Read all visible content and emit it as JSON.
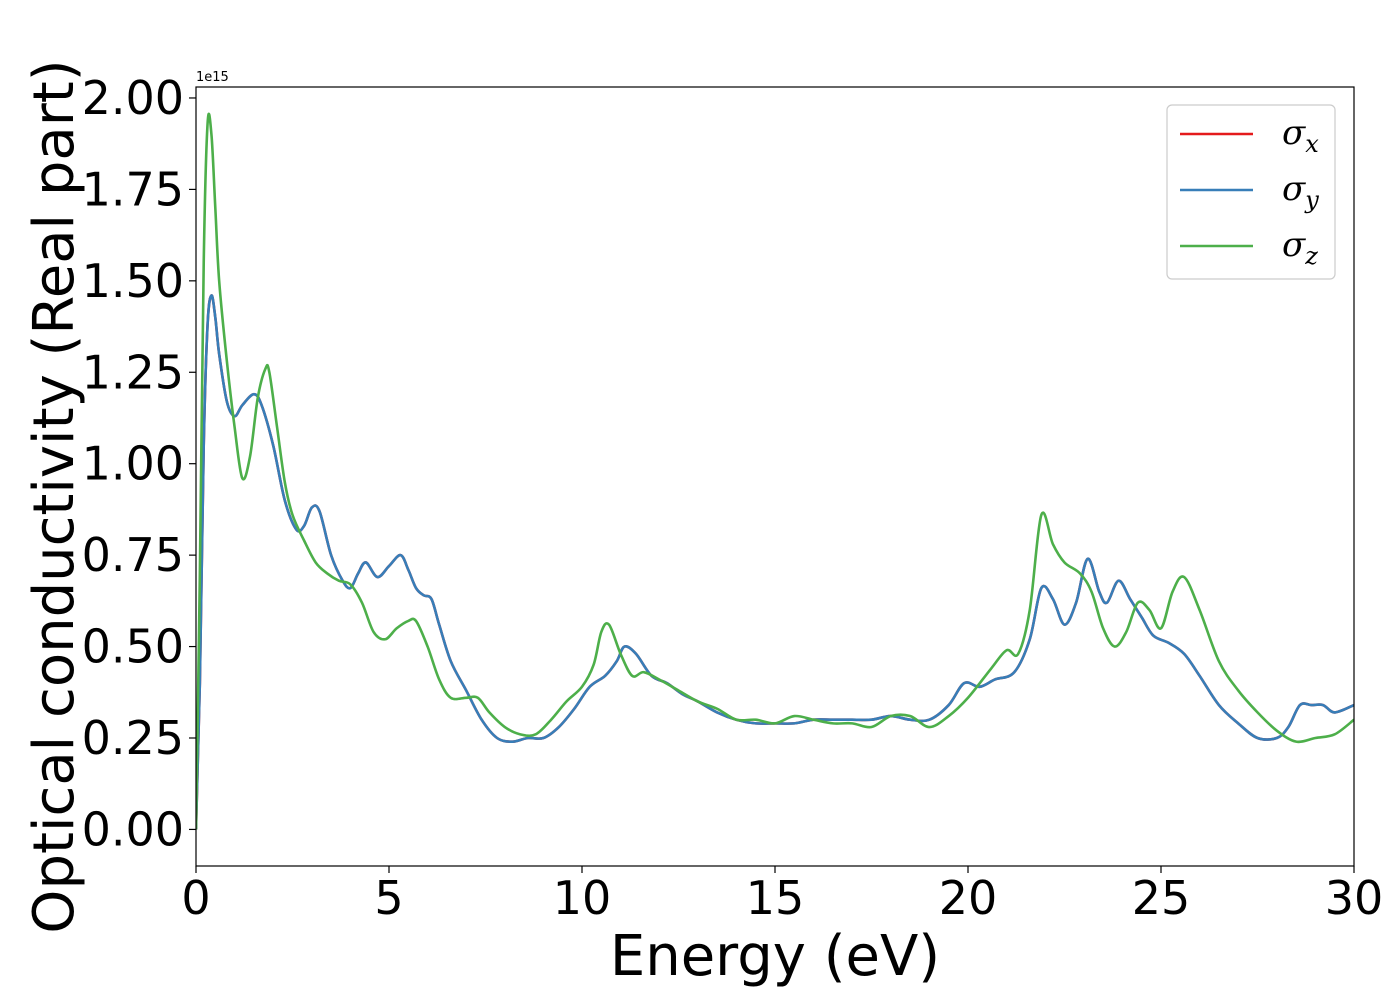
{
  "chart_data": {
    "type": "line",
    "xlabel": "Energy (eV)",
    "ylabel": "Optical conductivity (Real part)",
    "offset_text": "1e15",
    "xlim": [
      0,
      30
    ],
    "ylim": [
      -0.1,
      2.03
    ],
    "xticks": [
      0,
      5,
      10,
      15,
      20,
      25,
      30
    ],
    "xtick_labels": [
      "0",
      "5",
      "10",
      "15",
      "20",
      "25",
      "30"
    ],
    "yticks": [
      0.0,
      0.25,
      0.5,
      0.75,
      1.0,
      1.25,
      1.5,
      1.75,
      2.0
    ],
    "ytick_labels": [
      "0.00",
      "0.25",
      "0.50",
      "0.75",
      "1.00",
      "1.25",
      "1.50",
      "1.75",
      "2.00"
    ],
    "grid": false,
    "legend_position": "top-right",
    "series": [
      {
        "name": "σx",
        "symbol": "σ",
        "subscript": "x",
        "color": "#e41a1c",
        "x": [
          0,
          0.1,
          0.2,
          0.3,
          0.4,
          0.5,
          0.6,
          0.8,
          1.0,
          1.2,
          1.5,
          1.7,
          2.0,
          2.3,
          2.6,
          2.8,
          3.0,
          3.2,
          3.5,
          3.8,
          4.0,
          4.2,
          4.4,
          4.7,
          5.0,
          5.3,
          5.5,
          5.7,
          5.9,
          6.1,
          6.3,
          6.6,
          7.0,
          7.4,
          7.8,
          8.2,
          8.6,
          9.0,
          9.4,
          9.8,
          10.2,
          10.6,
          10.9,
          11.1,
          11.4,
          11.8,
          12.2,
          12.6,
          13.0,
          13.5,
          14.0,
          14.5,
          15.0,
          15.5,
          16.0,
          16.5,
          17.0,
          17.5,
          18.0,
          18.5,
          19.0,
          19.5,
          19.9,
          20.3,
          20.7,
          21.2,
          21.6,
          21.9,
          22.2,
          22.5,
          22.8,
          23.1,
          23.4,
          23.6,
          23.9,
          24.2,
          24.5,
          24.8,
          25.2,
          25.6,
          26.0,
          26.5,
          27.0,
          27.5,
          28.0,
          28.3,
          28.6,
          28.9,
          29.2,
          29.5,
          30.0
        ],
        "y": [
          0.0,
          0.4,
          1.05,
          1.38,
          1.46,
          1.4,
          1.3,
          1.17,
          1.13,
          1.16,
          1.19,
          1.16,
          1.05,
          0.9,
          0.82,
          0.83,
          0.88,
          0.87,
          0.75,
          0.68,
          0.66,
          0.7,
          0.73,
          0.69,
          0.72,
          0.75,
          0.71,
          0.66,
          0.64,
          0.63,
          0.56,
          0.46,
          0.38,
          0.3,
          0.25,
          0.24,
          0.25,
          0.25,
          0.28,
          0.33,
          0.39,
          0.42,
          0.46,
          0.5,
          0.48,
          0.42,
          0.4,
          0.37,
          0.35,
          0.32,
          0.3,
          0.29,
          0.29,
          0.29,
          0.3,
          0.3,
          0.3,
          0.3,
          0.31,
          0.3,
          0.3,
          0.34,
          0.4,
          0.39,
          0.41,
          0.43,
          0.52,
          0.66,
          0.63,
          0.56,
          0.62,
          0.74,
          0.65,
          0.62,
          0.68,
          0.63,
          0.58,
          0.53,
          0.51,
          0.48,
          0.42,
          0.34,
          0.29,
          0.25,
          0.25,
          0.28,
          0.34,
          0.34,
          0.34,
          0.32,
          0.34
        ]
      },
      {
        "name": "σy",
        "symbol": "σ",
        "subscript": "y",
        "color": "#377eb8",
        "x": [
          0,
          0.1,
          0.2,
          0.3,
          0.4,
          0.5,
          0.6,
          0.8,
          1.0,
          1.2,
          1.5,
          1.7,
          2.0,
          2.3,
          2.6,
          2.8,
          3.0,
          3.2,
          3.5,
          3.8,
          4.0,
          4.2,
          4.4,
          4.7,
          5.0,
          5.3,
          5.5,
          5.7,
          5.9,
          6.1,
          6.3,
          6.6,
          7.0,
          7.4,
          7.8,
          8.2,
          8.6,
          9.0,
          9.4,
          9.8,
          10.2,
          10.6,
          10.9,
          11.1,
          11.4,
          11.8,
          12.2,
          12.6,
          13.0,
          13.5,
          14.0,
          14.5,
          15.0,
          15.5,
          16.0,
          16.5,
          17.0,
          17.5,
          18.0,
          18.5,
          19.0,
          19.5,
          19.9,
          20.3,
          20.7,
          21.2,
          21.6,
          21.9,
          22.2,
          22.5,
          22.8,
          23.1,
          23.4,
          23.6,
          23.9,
          24.2,
          24.5,
          24.8,
          25.2,
          25.6,
          26.0,
          26.5,
          27.0,
          27.5,
          28.0,
          28.3,
          28.6,
          28.9,
          29.2,
          29.5,
          30.0
        ],
        "y": [
          0.0,
          0.4,
          1.05,
          1.38,
          1.46,
          1.4,
          1.3,
          1.17,
          1.13,
          1.16,
          1.19,
          1.16,
          1.05,
          0.9,
          0.82,
          0.83,
          0.88,
          0.87,
          0.75,
          0.68,
          0.66,
          0.7,
          0.73,
          0.69,
          0.72,
          0.75,
          0.71,
          0.66,
          0.64,
          0.63,
          0.56,
          0.46,
          0.38,
          0.3,
          0.25,
          0.24,
          0.25,
          0.25,
          0.28,
          0.33,
          0.39,
          0.42,
          0.46,
          0.5,
          0.48,
          0.42,
          0.4,
          0.37,
          0.35,
          0.32,
          0.3,
          0.29,
          0.29,
          0.29,
          0.3,
          0.3,
          0.3,
          0.3,
          0.31,
          0.3,
          0.3,
          0.34,
          0.4,
          0.39,
          0.41,
          0.43,
          0.52,
          0.66,
          0.63,
          0.56,
          0.62,
          0.74,
          0.65,
          0.62,
          0.68,
          0.63,
          0.58,
          0.53,
          0.51,
          0.48,
          0.42,
          0.34,
          0.29,
          0.25,
          0.25,
          0.28,
          0.34,
          0.34,
          0.34,
          0.32,
          0.34
        ]
      },
      {
        "name": "σz",
        "symbol": "σ",
        "subscript": "z",
        "color": "#4daf4a",
        "x": [
          0,
          0.1,
          0.2,
          0.3,
          0.4,
          0.5,
          0.6,
          0.8,
          1.0,
          1.2,
          1.4,
          1.6,
          1.8,
          1.9,
          2.1,
          2.3,
          2.5,
          2.8,
          3.1,
          3.4,
          3.7,
          4.0,
          4.3,
          4.6,
          4.9,
          5.2,
          5.5,
          5.7,
          6.0,
          6.3,
          6.6,
          7.0,
          7.3,
          7.6,
          8.0,
          8.4,
          8.8,
          9.2,
          9.6,
          10.0,
          10.3,
          10.5,
          10.7,
          11.0,
          11.3,
          11.6,
          12.0,
          12.5,
          13.0,
          13.5,
          14.0,
          14.5,
          15.0,
          15.5,
          16.0,
          16.5,
          17.0,
          17.5,
          18.0,
          18.5,
          19.0,
          19.5,
          20.0,
          20.6,
          21.0,
          21.3,
          21.6,
          21.9,
          22.2,
          22.5,
          22.9,
          23.2,
          23.5,
          23.8,
          24.1,
          24.4,
          24.7,
          25.0,
          25.3,
          25.6,
          26.0,
          26.5,
          27.0,
          27.5,
          28.0,
          28.5,
          29.0,
          29.5,
          30.0
        ],
        "y": [
          0.0,
          0.7,
          1.55,
          1.93,
          1.9,
          1.7,
          1.5,
          1.28,
          1.1,
          0.96,
          1.02,
          1.18,
          1.26,
          1.25,
          1.1,
          0.95,
          0.86,
          0.79,
          0.73,
          0.7,
          0.68,
          0.67,
          0.62,
          0.54,
          0.52,
          0.55,
          0.57,
          0.57,
          0.5,
          0.41,
          0.36,
          0.36,
          0.36,
          0.32,
          0.28,
          0.26,
          0.26,
          0.3,
          0.35,
          0.39,
          0.45,
          0.54,
          0.56,
          0.48,
          0.42,
          0.43,
          0.41,
          0.38,
          0.35,
          0.33,
          0.3,
          0.3,
          0.29,
          0.31,
          0.3,
          0.29,
          0.29,
          0.28,
          0.31,
          0.31,
          0.28,
          0.31,
          0.36,
          0.44,
          0.49,
          0.48,
          0.6,
          0.86,
          0.78,
          0.73,
          0.7,
          0.65,
          0.55,
          0.5,
          0.54,
          0.62,
          0.6,
          0.55,
          0.65,
          0.69,
          0.6,
          0.46,
          0.38,
          0.32,
          0.27,
          0.24,
          0.25,
          0.26,
          0.3
        ]
      }
    ]
  }
}
